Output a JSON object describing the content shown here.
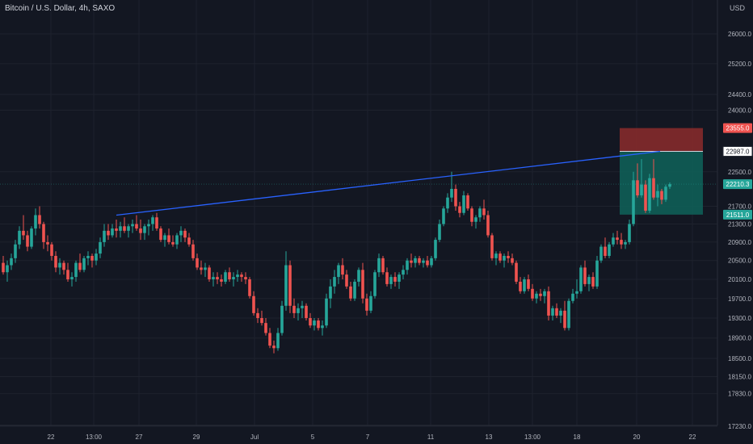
{
  "header": {
    "title": "Bitcoin / U.S. Dollar, 4h, SAXO",
    "currency": "USD"
  },
  "colors": {
    "background": "#131722",
    "grid": "#1e222d",
    "up": "#26a69a",
    "down": "#ef5350",
    "trendline": "#2962ff",
    "axis_text": "#b2b5be",
    "stop_zone": "#8c2b2b",
    "target_zone": "#0f5e57"
  },
  "chart_data": {
    "type": "candlestick",
    "title": "Bitcoin / U.S. Dollar, 4h, SAXO",
    "interval": "4h",
    "y_axis": {
      "scale": "log",
      "position": "right",
      "ylim": [
        17100,
        27200
      ],
      "ticks": [
        "26000.0",
        "25200.0",
        "24400.0",
        "24000.0",
        "23555.0",
        "22987.0",
        "22500.0",
        "22210.3",
        "21700.0",
        "21511.0",
        "21300.0",
        "20900.0",
        "20500.0",
        "20100.0",
        "19700.0",
        "19300.0",
        "18900.0",
        "18500.0",
        "18150.0",
        "17830.0",
        "17230.0"
      ]
    },
    "x_axis": {
      "ticks": [
        "22",
        "13:00",
        "27",
        "29",
        "Jul",
        "5",
        "7",
        "11",
        "13",
        "13:00",
        "18",
        "20",
        "22"
      ]
    },
    "grid": true,
    "candles": [
      [
        20450,
        20600,
        20200,
        20250
      ],
      [
        20250,
        20500,
        20050,
        20400
      ],
      [
        20400,
        20650,
        20300,
        20550
      ],
      [
        20550,
        20950,
        20450,
        20850
      ],
      [
        20850,
        21250,
        20750,
        21150
      ],
      [
        21150,
        21500,
        20950,
        21050
      ],
      [
        21050,
        21150,
        20700,
        20800
      ],
      [
        20800,
        21250,
        20750,
        21200
      ],
      [
        21200,
        21650,
        21050,
        21500
      ],
      [
        21500,
        21700,
        21200,
        21300
      ],
      [
        21300,
        21350,
        20750,
        20900
      ],
      [
        20900,
        21050,
        20700,
        20850
      ],
      [
        20850,
        20900,
        20500,
        20600
      ],
      [
        20600,
        20700,
        20250,
        20350
      ],
      [
        20350,
        20550,
        20200,
        20450
      ],
      [
        20450,
        20500,
        20200,
        20300
      ],
      [
        20300,
        20450,
        20050,
        20100
      ],
      [
        20100,
        20250,
        19950,
        20150
      ],
      [
        20150,
        20500,
        20050,
        20450
      ],
      [
        20450,
        20650,
        20250,
        20300
      ],
      [
        20300,
        20600,
        20250,
        20550
      ],
      [
        20550,
        20700,
        20400,
        20600
      ],
      [
        20600,
        20650,
        20350,
        20500
      ],
      [
        20500,
        20750,
        20400,
        20650
      ],
      [
        20650,
        21000,
        20550,
        20900
      ],
      [
        20900,
        21300,
        20800,
        21150
      ],
      [
        21150,
        21300,
        20950,
        21050
      ],
      [
        21050,
        21300,
        21000,
        21200
      ],
      [
        21200,
        21400,
        21000,
        21150
      ],
      [
        21150,
        21350,
        21000,
        21250
      ],
      [
        21250,
        21450,
        21100,
        21150
      ],
      [
        21150,
        21300,
        21000,
        21250
      ],
      [
        21250,
        21400,
        21100,
        21300
      ],
      [
        21300,
        21500,
        21150,
        21200
      ],
      [
        21200,
        21400,
        20950,
        21100
      ],
      [
        21100,
        21300,
        20950,
        21250
      ],
      [
        21250,
        21400,
        21050,
        21300
      ],
      [
        21300,
        21500,
        21150,
        21450
      ],
      [
        21450,
        21550,
        21150,
        21200
      ],
      [
        21200,
        21250,
        20900,
        20950
      ],
      [
        20950,
        21100,
        20800,
        21050
      ],
      [
        21050,
        21200,
        20850,
        20900
      ],
      [
        20900,
        21050,
        20800,
        20850
      ],
      [
        20850,
        21100,
        20750,
        21050
      ],
      [
        21050,
        21250,
        20900,
        21150
      ],
      [
        21150,
        21200,
        20900,
        21000
      ],
      [
        21000,
        21100,
        20800,
        20850
      ],
      [
        20850,
        20950,
        20500,
        20550
      ],
      [
        20550,
        20650,
        20300,
        20350
      ],
      [
        20350,
        20500,
        20200,
        20300
      ],
      [
        20300,
        20450,
        20150,
        20350
      ],
      [
        20350,
        20400,
        20050,
        20100
      ],
      [
        20100,
        20250,
        19950,
        20150
      ],
      [
        20150,
        20250,
        20000,
        20100
      ],
      [
        20100,
        20200,
        19950,
        20050
      ],
      [
        20050,
        20300,
        20000,
        20250
      ],
      [
        20250,
        20350,
        20050,
        20100
      ],
      [
        20100,
        20250,
        19950,
        20150
      ],
      [
        20150,
        20300,
        20050,
        20200
      ],
      [
        20200,
        20250,
        20050,
        20150
      ],
      [
        20150,
        20250,
        20000,
        20100
      ],
      [
        20100,
        20150,
        19700,
        19750
      ],
      [
        19750,
        19850,
        19350,
        19400
      ],
      [
        19400,
        19500,
        19200,
        19300
      ],
      [
        19300,
        19450,
        19150,
        19200
      ],
      [
        19200,
        19300,
        18950,
        19000
      ],
      [
        19000,
        19100,
        18700,
        18750
      ],
      [
        18750,
        18850,
        18600,
        18700
      ],
      [
        18700,
        19100,
        18650,
        19000
      ],
      [
        19000,
        19650,
        18950,
        19550
      ],
      [
        19550,
        20700,
        19450,
        20400
      ],
      [
        20400,
        20500,
        19400,
        19550
      ],
      [
        19550,
        19700,
        19300,
        19400
      ],
      [
        19400,
        19600,
        19250,
        19500
      ],
      [
        19500,
        19650,
        19300,
        19550
      ],
      [
        19550,
        19600,
        19250,
        19300
      ],
      [
        19300,
        19400,
        19100,
        19150
      ],
      [
        19150,
        19300,
        19050,
        19250
      ],
      [
        19250,
        19300,
        19050,
        19100
      ],
      [
        19100,
        19250,
        18950,
        19150
      ],
      [
        19150,
        19800,
        19100,
        19700
      ],
      [
        19700,
        20100,
        19500,
        19950
      ],
      [
        19950,
        20300,
        19800,
        20150
      ],
      [
        20150,
        20450,
        20000,
        20400
      ],
      [
        20400,
        20550,
        20100,
        20200
      ],
      [
        20200,
        20300,
        19900,
        19950
      ],
      [
        19950,
        20050,
        19650,
        19700
      ],
      [
        19700,
        20100,
        19650,
        20050
      ],
      [
        20050,
        20350,
        19950,
        20300
      ],
      [
        20300,
        20450,
        19600,
        19700
      ],
      [
        19700,
        19800,
        19350,
        19450
      ],
      [
        19450,
        19850,
        19400,
        19750
      ],
      [
        19750,
        20300,
        19700,
        20250
      ],
      [
        20250,
        20650,
        20150,
        20550
      ],
      [
        20550,
        20600,
        20200,
        20250
      ],
      [
        20250,
        20350,
        19950,
        20000
      ],
      [
        20000,
        20200,
        19900,
        20150
      ],
      [
        20150,
        20250,
        19950,
        20050
      ],
      [
        20050,
        20250,
        19900,
        20200
      ],
      [
        20200,
        20400,
        20100,
        20300
      ],
      [
        20300,
        20550,
        20200,
        20500
      ],
      [
        20500,
        20650,
        20350,
        20450
      ],
      [
        20450,
        20600,
        20350,
        20550
      ],
      [
        20550,
        20600,
        20400,
        20450
      ],
      [
        20450,
        20550,
        20350,
        20500
      ],
      [
        20500,
        20600,
        20350,
        20400
      ],
      [
        20400,
        20600,
        20350,
        20550
      ],
      [
        20550,
        21000,
        20500,
        20950
      ],
      [
        20950,
        21400,
        20900,
        21300
      ],
      [
        21300,
        21700,
        21250,
        21650
      ],
      [
        21650,
        22000,
        21550,
        21900
      ],
      [
        21900,
        22500,
        21800,
        22100
      ],
      [
        22100,
        22200,
        21600,
        21700
      ],
      [
        21700,
        21800,
        21450,
        21550
      ],
      [
        21550,
        22050,
        21500,
        21950
      ],
      [
        21950,
        22000,
        21600,
        21650
      ],
      [
        21650,
        21700,
        21250,
        21350
      ],
      [
        21350,
        21500,
        21200,
        21450
      ],
      [
        21450,
        21700,
        21350,
        21650
      ],
      [
        21650,
        21850,
        21400,
        21500
      ],
      [
        21500,
        21600,
        21000,
        21050
      ],
      [
        21050,
        21100,
        20500,
        20550
      ],
      [
        20550,
        20700,
        20400,
        20650
      ],
      [
        20650,
        20700,
        20450,
        20500
      ],
      [
        20500,
        20650,
        20350,
        20600
      ],
      [
        20600,
        20700,
        20450,
        20550
      ],
      [
        20550,
        20650,
        20400,
        20450
      ],
      [
        20450,
        20500,
        20000,
        20050
      ],
      [
        20050,
        20150,
        19800,
        19850
      ],
      [
        19850,
        20150,
        19800,
        20100
      ],
      [
        20100,
        20200,
        19850,
        19900
      ],
      [
        19900,
        20000,
        19650,
        19700
      ],
      [
        19700,
        19850,
        19600,
        19800
      ],
      [
        19800,
        19900,
        19650,
        19750
      ],
      [
        19750,
        19900,
        19600,
        19850
      ],
      [
        19850,
        19950,
        19250,
        19350
      ],
      [
        19350,
        19550,
        19250,
        19500
      ],
      [
        19500,
        19600,
        19300,
        19350
      ],
      [
        19350,
        19500,
        19200,
        19450
      ],
      [
        19450,
        19650,
        19050,
        19100
      ],
      [
        19100,
        19700,
        19050,
        19650
      ],
      [
        19650,
        19900,
        19600,
        19800
      ],
      [
        19800,
        20100,
        19700,
        19850
      ],
      [
        19850,
        20400,
        19800,
        20350
      ],
      [
        20350,
        20500,
        19950,
        20000
      ],
      [
        20000,
        20200,
        19850,
        20150
      ],
      [
        20150,
        20250,
        19900,
        19950
      ],
      [
        19950,
        20600,
        19900,
        20500
      ],
      [
        20500,
        20850,
        20450,
        20800
      ],
      [
        20800,
        21000,
        20550,
        20600
      ],
      [
        20600,
        20900,
        20550,
        20850
      ],
      [
        20850,
        21100,
        20800,
        21000
      ],
      [
        21000,
        21150,
        20850,
        20950
      ],
      [
        20950,
        21100,
        20750,
        20850
      ],
      [
        20850,
        20950,
        20750,
        20900
      ],
      [
        20900,
        21400,
        20850,
        21300
      ],
      [
        21300,
        22500,
        21250,
        22300
      ],
      [
        22300,
        22700,
        21900,
        21950
      ],
      [
        21950,
        22800,
        21900,
        22200
      ],
      [
        22200,
        22300,
        21550,
        21600
      ],
      [
        21600,
        22450,
        21550,
        22350
      ],
      [
        22350,
        22800,
        21850,
        21900
      ],
      [
        21900,
        22200,
        21700,
        22050
      ],
      [
        22050,
        22100,
        21750,
        21850
      ],
      [
        21850,
        22200,
        21800,
        22150
      ],
      [
        22150,
        22250,
        22100,
        22210
      ]
    ],
    "trendline": {
      "color": "#2962ff",
      "points": [
        {
          "candle": 28,
          "value": 21500
        },
        {
          "candle": 160,
          "value": 22987
        }
      ]
    },
    "position": {
      "type": "short",
      "entry": 22987.0,
      "stop": 23555.0,
      "target": 21511.0
    },
    "price_labels": [
      {
        "value": "23555.0",
        "price": 23555,
        "style": "stop"
      },
      {
        "value": "22987.0",
        "price": 22987,
        "style": "entry"
      },
      {
        "value": "22210.3",
        "price": 22210.3,
        "style": "last"
      },
      {
        "value": "21511.0",
        "price": 21511,
        "style": "target"
      }
    ]
  }
}
